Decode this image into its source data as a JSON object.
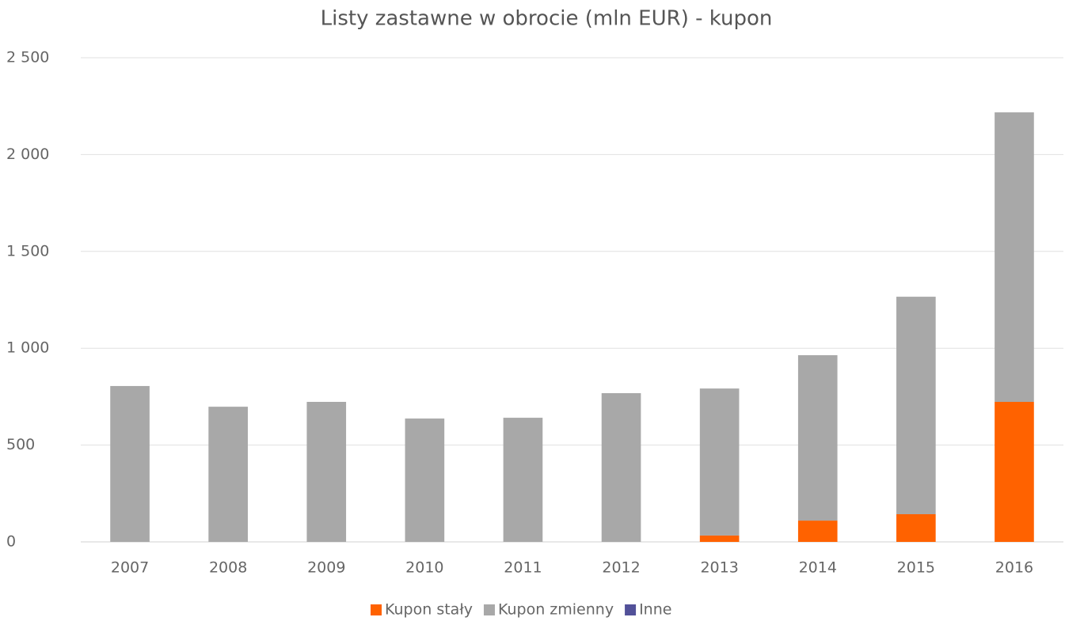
{
  "chart_data": {
    "type": "stacked_bar",
    "title": "Listy zastawne w obrocie (mln EUR) - kupon",
    "categories": [
      "2007",
      "2008",
      "2009",
      "2010",
      "2011",
      "2012",
      "2013",
      "2014",
      "2015",
      "2016"
    ],
    "series": [
      {
        "name": "Kupon stały",
        "color": "#ff6200",
        "values": [
          0,
          0,
          0,
          0,
          0,
          0,
          33,
          110,
          143,
          723
        ]
      },
      {
        "name": "Kupon zmienny",
        "color": "#a8a8a8",
        "values": [
          805,
          698,
          723,
          637,
          641,
          768,
          759,
          854,
          1123,
          1495
        ]
      },
      {
        "name": "Inne",
        "color": "#525199",
        "values": [
          0,
          0,
          0,
          0,
          0,
          0,
          0,
          0,
          0,
          0
        ]
      }
    ],
    "ylim": [
      0,
      2500
    ],
    "yticks": [
      0,
      500,
      {
        "value": 1000,
        "label": "1 000"
      },
      {
        "value": 1500,
        "label": "1 500"
      },
      {
        "value": 2000,
        "label": "2 000"
      },
      {
        "value": 2500,
        "label": "2 500"
      }
    ],
    "grid": true,
    "legend": "bottom"
  }
}
